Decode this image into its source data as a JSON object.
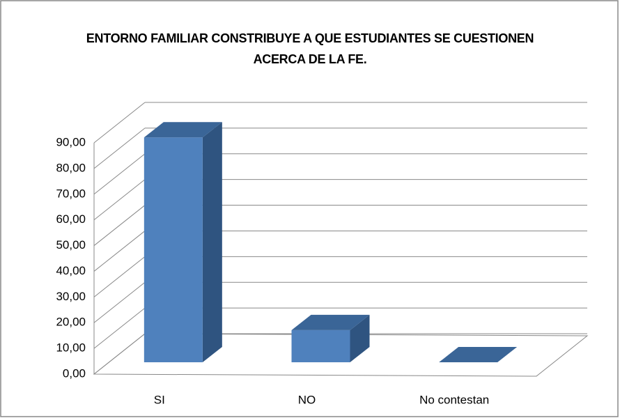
{
  "chart_data": {
    "type": "bar3d",
    "title": "ENTORNO FAMILIAR CONSTRIBUYE A QUE ESTUDIANTES SE CUESTIONEN ACERCA DE LA FE.",
    "categories": [
      "SI",
      "NO",
      "No contestan"
    ],
    "values": [
      87.5,
      12.5,
      0
    ],
    "color": "#4f81bd",
    "ylim": [
      0,
      90
    ],
    "yticks": [
      {
        "value": 0,
        "label": "0,00"
      },
      {
        "value": 10,
        "label": "10,00"
      },
      {
        "value": 20,
        "label": "20,00"
      },
      {
        "value": 30,
        "label": "30,00"
      },
      {
        "value": 40,
        "label": "40,00"
      },
      {
        "value": 50,
        "label": "50,00"
      },
      {
        "value": 60,
        "label": "60,00"
      },
      {
        "value": 70,
        "label": "70,00"
      },
      {
        "value": 80,
        "label": "80,00"
      },
      {
        "value": 90,
        "label": "90,00"
      }
    ],
    "grid": true
  }
}
